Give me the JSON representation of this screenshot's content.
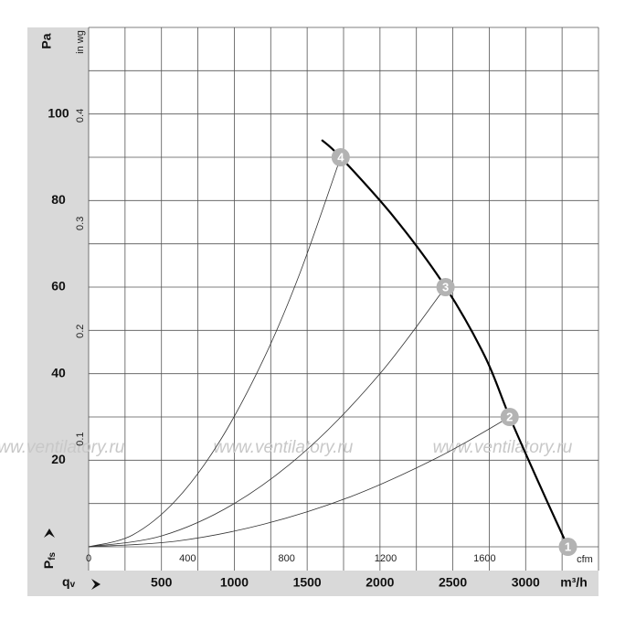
{
  "chart_data": {
    "type": "line",
    "ylabel": "Pa",
    "y2label": "in wg",
    "xlabel": "m³/h",
    "x2label": "cfm",
    "xsymbol": [
      "q",
      "v"
    ],
    "ysymbol": [
      "P",
      "fs"
    ],
    "watermark": "www.ventilatory.ru",
    "xlim": [
      0,
      3500
    ],
    "xticks": [
      500,
      1000,
      1500,
      2000,
      2500,
      3000
    ],
    "ylim": [
      0,
      120
    ],
    "yticks": [
      20,
      40,
      60,
      80,
      100
    ],
    "x2lim": [
      0,
      2060
    ],
    "x2ticks": [
      0,
      400,
      800,
      1200,
      1600
    ],
    "y2lim": [
      0,
      0.4818
    ],
    "y2ticks": [
      0.1,
      0.2,
      0.3,
      0.4
    ],
    "xgrid": [
      0,
      250,
      500,
      750,
      1000,
      1250,
      1500,
      1750,
      2000,
      2250,
      2500,
      2750,
      3000,
      3250,
      3500
    ],
    "ygrid": [
      0,
      10,
      20,
      30,
      40,
      50,
      60,
      70,
      80,
      90,
      100,
      110,
      120
    ],
    "series": [
      {
        "color": "#000000",
        "x": [
          1600,
          1730,
          2100,
          2450,
          2720,
          2890,
          3100,
          3290
        ],
        "values": [
          94,
          90,
          76,
          60,
          44,
          30,
          14,
          0
        ]
      },
      {
        "color": "#333333",
        "x": [
          0,
          300,
          600,
          900,
          1200,
          1450,
          1730
        ],
        "values": [
          0,
          2.7,
          10.8,
          24.4,
          43.3,
          63.2,
          90
        ]
      },
      {
        "color": "#333333",
        "x": [
          0,
          500,
          1000,
          1500,
          2000,
          2450
        ],
        "values": [
          0,
          2.5,
          10,
          22.5,
          40,
          60
        ]
      },
      {
        "color": "#333333",
        "x": [
          0,
          600,
          1200,
          1800,
          2400,
          2890
        ],
        "values": [
          0,
          1.3,
          5.2,
          11.6,
          20.7,
          30
        ]
      }
    ],
    "points": [
      {
        "label": "1",
        "x": 3290,
        "y": 0
      },
      {
        "label": "2",
        "x": 2890,
        "y": 30
      },
      {
        "label": "3",
        "x": 2450,
        "y": 60
      },
      {
        "label": "4",
        "x": 1730,
        "y": 90
      }
    ],
    "point_color": "#b3b3b3"
  }
}
